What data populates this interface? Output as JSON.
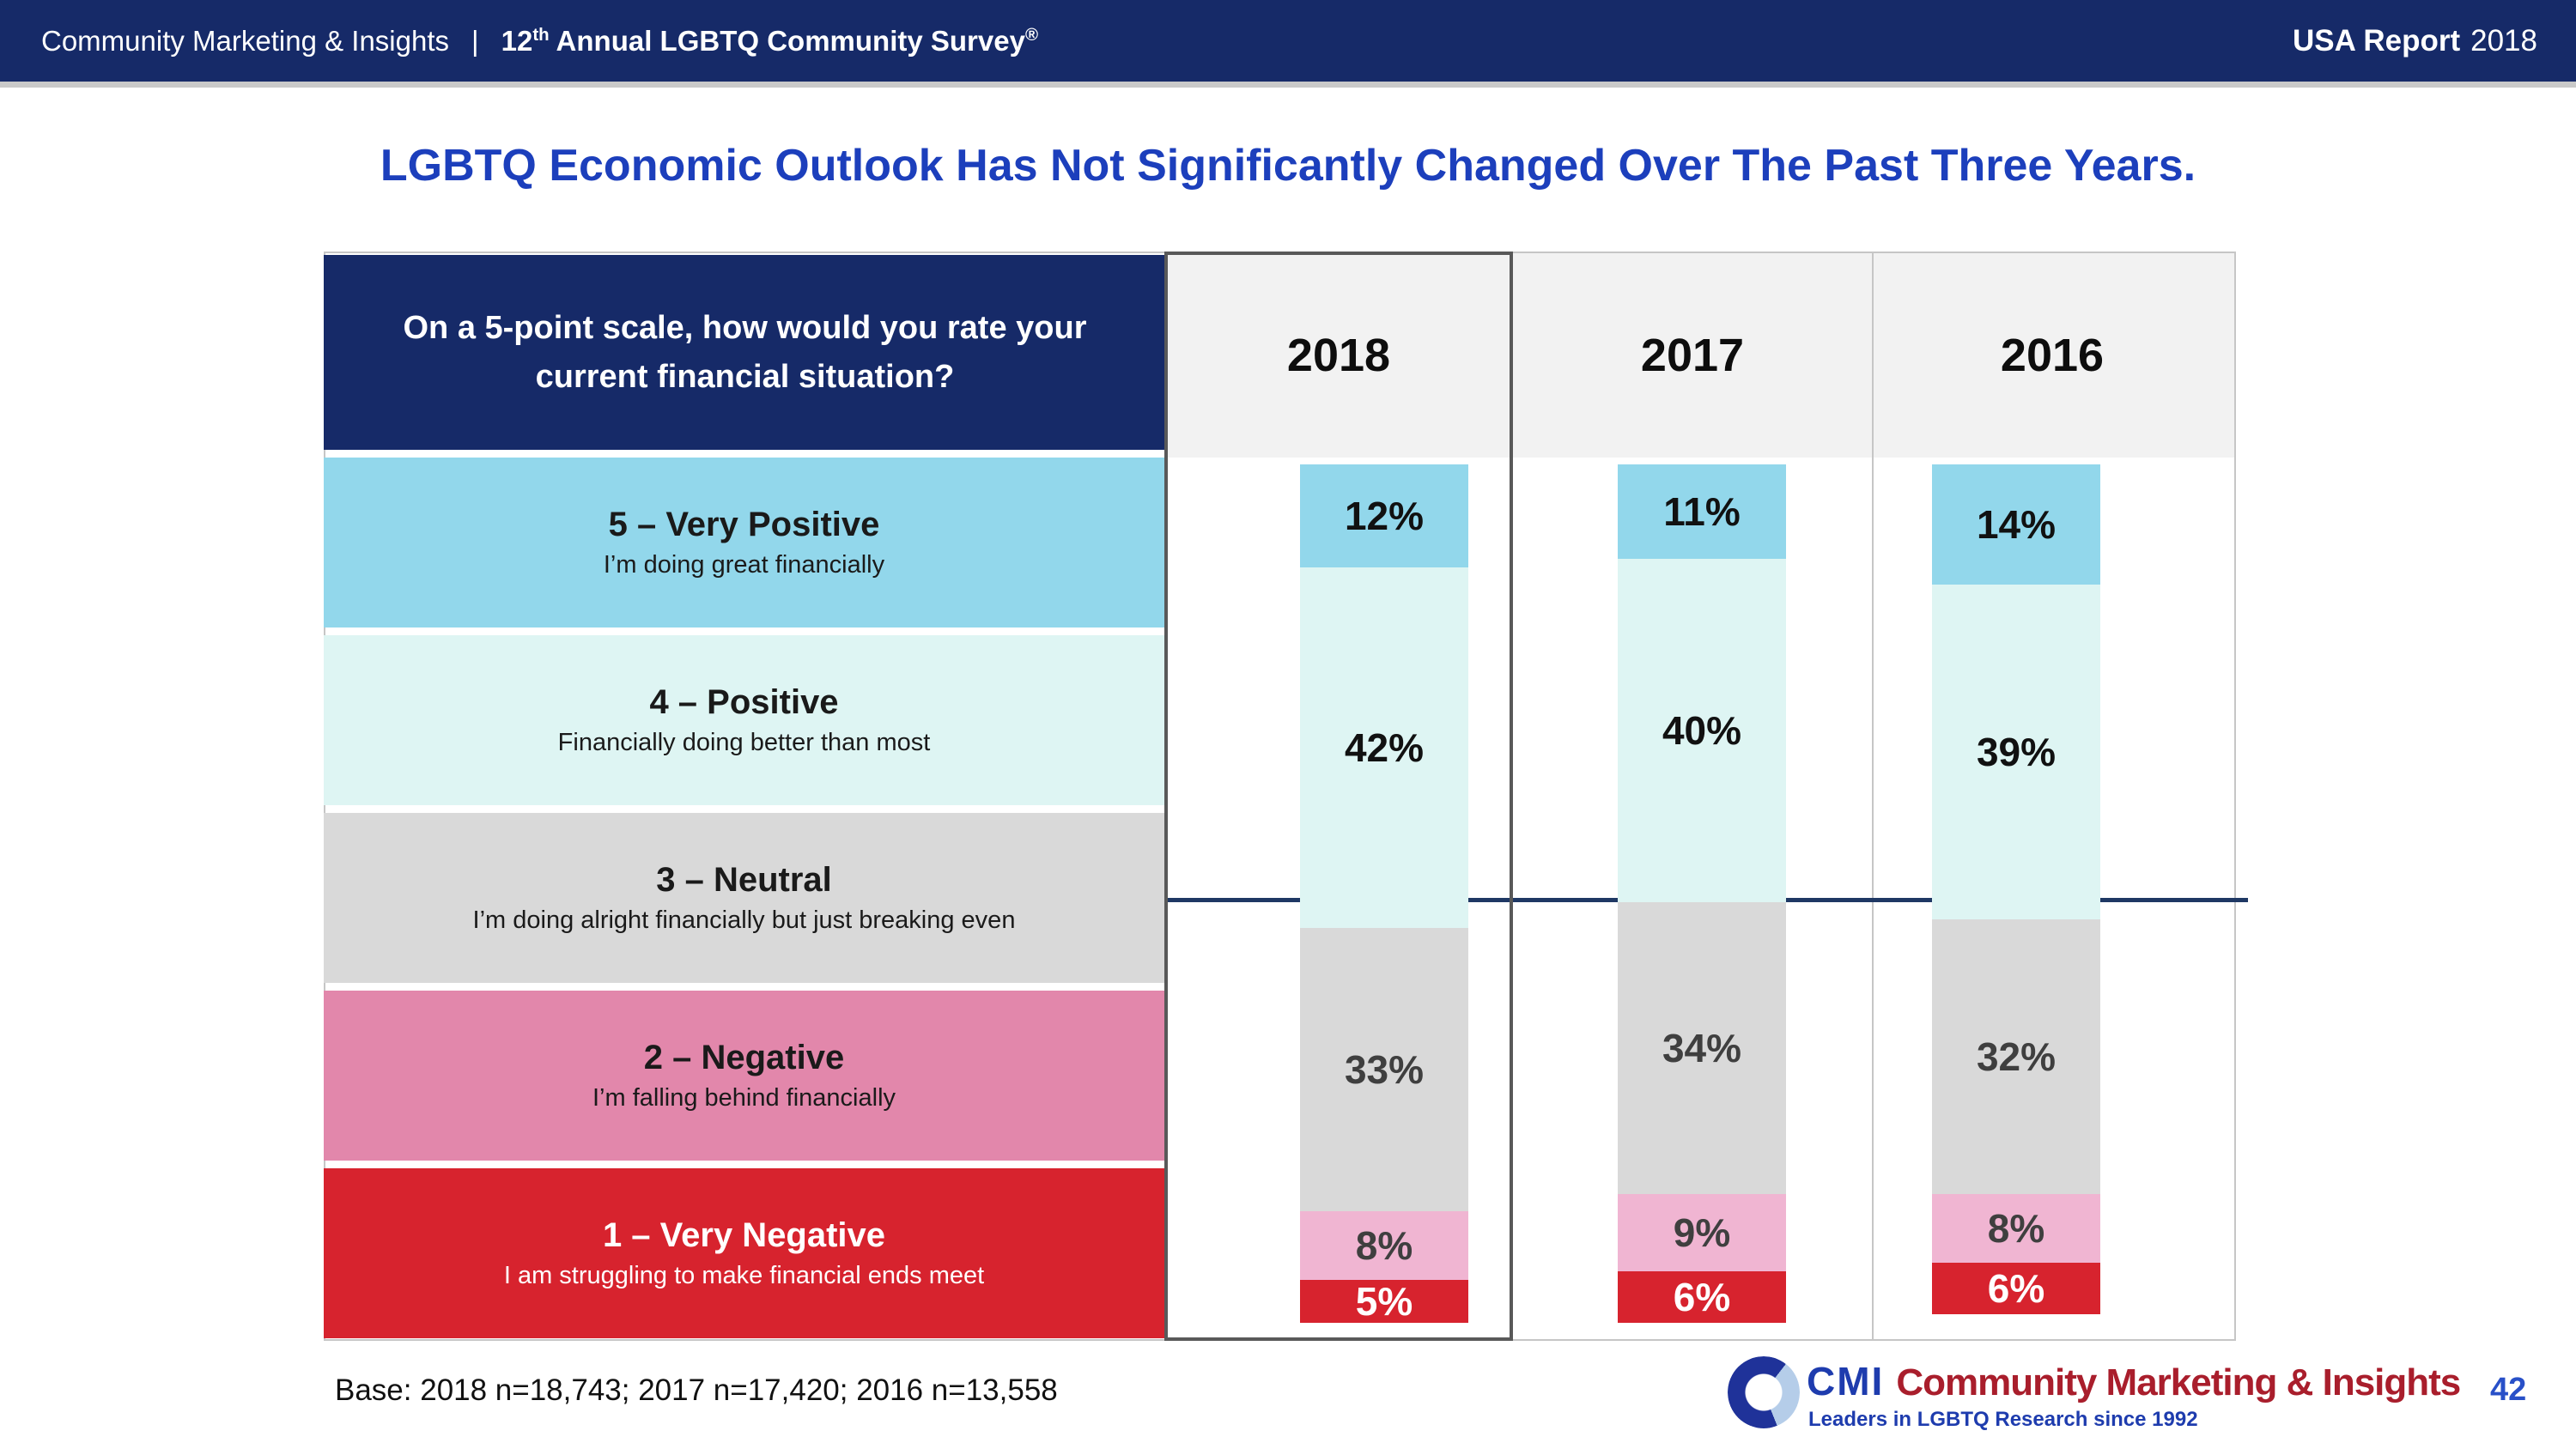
{
  "header": {
    "brand": "Community Marketing & Insights",
    "separator": "|",
    "survey_prefix": "12",
    "survey_sup": "th",
    "survey_rest": " Annual LGBTQ Community Survey",
    "survey_mark": "®",
    "report_bold": "USA Report",
    "report_year": "2018"
  },
  "title": "LGBTQ Economic Outlook Has Not Significantly Changed Over The Past Three Years.",
  "question": "On a 5-point scale, how would you rate your current financial situation?",
  "years": [
    "2018",
    "2017",
    "2016"
  ],
  "scale_rows": [
    {
      "label": "5 – Very Positive",
      "description": "I’m doing great financially",
      "color": "#92d7eb",
      "text_color": "#1a1a1a"
    },
    {
      "label": "4 – Positive",
      "description": "Financially doing better than most",
      "color": "#def5f3",
      "text_color": "#1a1a1a"
    },
    {
      "label": "3 – Neutral",
      "description": "I’m doing alright financially but just breaking even",
      "color": "#d9d9d9",
      "text_color": "#1a1a1a"
    },
    {
      "label": "2 – Negative",
      "description": "I’m falling behind financially",
      "color": "#e287ab",
      "text_color": "#1a1a1a"
    },
    {
      "label": "1 – Very Negative",
      "description": "I am struggling to make financial ends meet",
      "color": "#d7232e",
      "text_color": "#ffffff"
    }
  ],
  "chart_data": {
    "type": "bar",
    "stacked": true,
    "unit": "%",
    "title": "On a 5-point scale, how would you rate your current financial situation?",
    "categories": [
      "2018",
      "2017",
      "2016"
    ],
    "series": [
      {
        "name": "5 – Very Positive",
        "values": [
          12,
          11,
          14
        ]
      },
      {
        "name": "4 – Positive",
        "values": [
          42,
          40,
          39
        ]
      },
      {
        "name": "3 – Neutral",
        "values": [
          33,
          34,
          32
        ]
      },
      {
        "name": "2 – Negative",
        "values": [
          8,
          9,
          8
        ]
      },
      {
        "name": "1 – Very Negative",
        "values": [
          5,
          6,
          6
        ]
      }
    ],
    "colors": [
      "#92d7eb",
      "#def5f3",
      "#d9d9d9",
      "#f0b5d2",
      "#d7232e"
    ],
    "label_colors": [
      "#111111",
      "#111111",
      "#3f3f3f",
      "#3f3f3f",
      "#ffffff"
    ],
    "ylim": [
      0,
      100
    ],
    "grid": false,
    "legend_position": "left-row-labels",
    "reference_line_color": "#1f3864"
  },
  "footnote": "Base: 2018 n=18,743; 2017 n=17,420; 2016 n=13,558",
  "logo": {
    "abbr": "CMI",
    "name": "Community Marketing & Insights",
    "tagline": "Leaders in LGBTQ Research since 1992",
    "blue": "#1e3cae",
    "red": "#a91e2c"
  },
  "page_number": "42"
}
